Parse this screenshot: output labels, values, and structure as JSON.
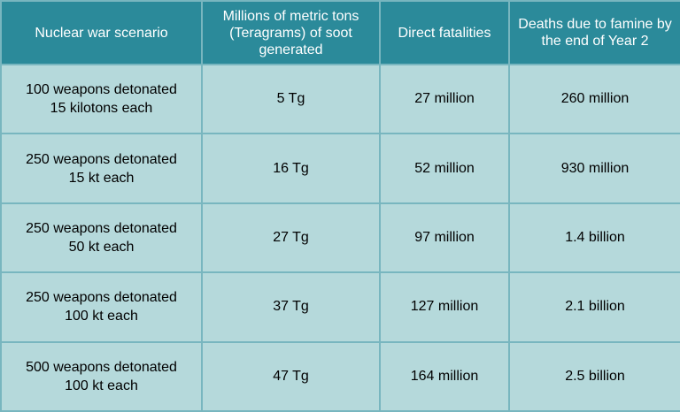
{
  "headers": [
    "Nuclear war scenario",
    "Millions of metric tons (Teragrams) of soot generated",
    "Direct fatalities",
    "Deaths due to famine by the end of Year 2"
  ],
  "rows": [
    {
      "scenario_line1": "100 weapons detonated",
      "scenario_line2": "15 kilotons each",
      "soot": "5 Tg",
      "direct": "27 million",
      "famine": "260 million"
    },
    {
      "scenario_line1": "250 weapons detonated",
      "scenario_line2": "15 kt each",
      "soot": "16 Tg",
      "direct": "52 million",
      "famine": "930 million"
    },
    {
      "scenario_line1": "250 weapons detonated",
      "scenario_line2": "50 kt each",
      "soot": "27 Tg",
      "direct": "97 million",
      "famine": "1.4 billion"
    },
    {
      "scenario_line1": "250 weapons detonated",
      "scenario_line2": "100 kt each",
      "soot": "37 Tg",
      "direct": "127 million",
      "famine": "2.1 billion"
    },
    {
      "scenario_line1": "500 weapons detonated",
      "scenario_line2": "100 kt each",
      "soot": "47 Tg",
      "direct": "164 million",
      "famine": "2.5 billion"
    }
  ],
  "colors": {
    "header_bg": "#2b8a9a",
    "cell_bg": "#b5d9db",
    "border": "#78b6bf"
  }
}
